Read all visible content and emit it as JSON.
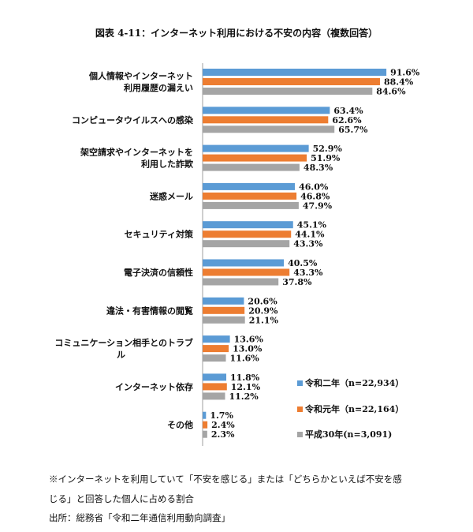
{
  "chart_data": {
    "type": "bar",
    "orientation": "horizontal",
    "title": "図表 4-11：インターネット利用における不安の内容（複数回答）",
    "categories": [
      [
        "個人情報やインターネット",
        "利用履歴の漏えい"
      ],
      [
        "コンピュータウイルスへの感染"
      ],
      [
        "架空請求やインターネットを",
        "利用した詐欺"
      ],
      [
        "迷惑メール"
      ],
      [
        "セキュリティ対策"
      ],
      [
        "電子決済の信頼性"
      ],
      [
        "違法・有害情報の閲覧"
      ],
      [
        "コミュニケーション相手とのトラブ",
        "ル"
      ],
      [
        "インターネット依存"
      ],
      [
        "その他"
      ]
    ],
    "series": [
      {
        "name": "令和二年（n=22,934）",
        "color": "#5b9bd5",
        "values": [
          91.6,
          63.4,
          52.9,
          46.0,
          45.1,
          40.5,
          20.6,
          13.6,
          11.8,
          1.7
        ]
      },
      {
        "name": "令和元年（n=22,164）",
        "color": "#ed7d31",
        "values": [
          88.4,
          62.6,
          51.9,
          46.8,
          44.1,
          43.3,
          20.9,
          13.0,
          12.1,
          2.4
        ]
      },
      {
        "name": "平成30年(n=3,091)",
        "color": "#a5a5a5",
        "values": [
          84.6,
          65.7,
          48.3,
          47.9,
          43.3,
          37.8,
          21.1,
          11.6,
          11.2,
          2.3
        ]
      }
    ],
    "value_suffix": "%",
    "xlim": [
      0,
      100
    ],
    "grid": false,
    "legend_position": "bottom-right"
  },
  "notes": {
    "line1": "※インターネットを利用していて「不安を感じる」または「どちらかといえば不安を感",
    "line2": "じる」と回答した個人に占める割合",
    "source": "出所：総務省「令和二年通信利用動向調査」"
  }
}
